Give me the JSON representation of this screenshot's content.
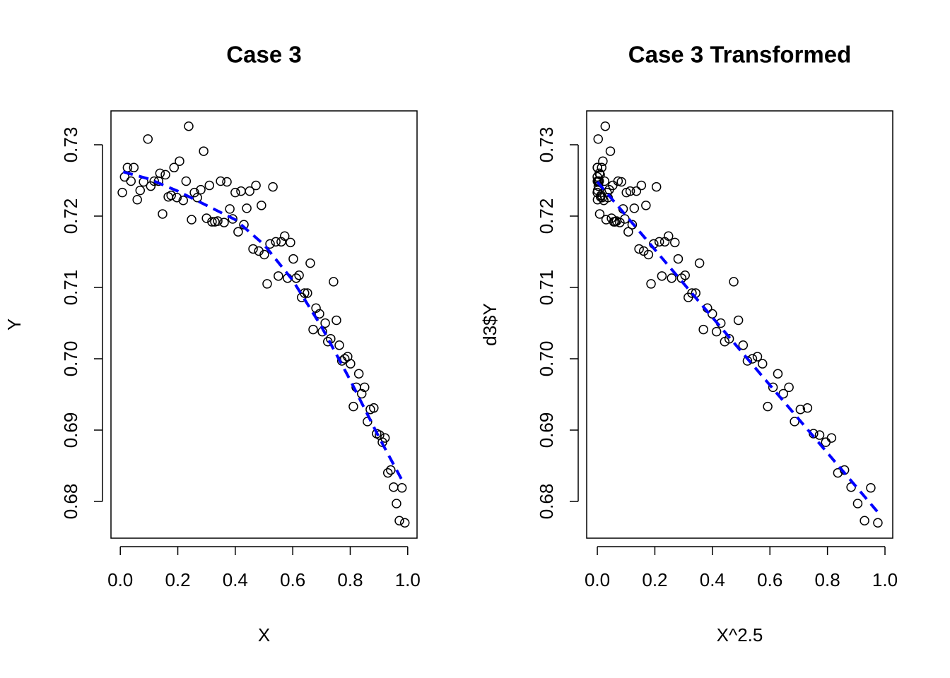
{
  "chart_data": [
    {
      "type": "scatter",
      "title": "Case 3",
      "x_label": "X",
      "y_label": "Y",
      "xlim": [
        -0.0325,
        1.0325
      ],
      "ylim": [
        0.67485,
        0.73475
      ],
      "xticks": [
        {
          "value": 0,
          "label": "0.0"
        },
        0.2,
        0.4,
        0.6,
        0.8,
        {
          "value": 1,
          "label": "1.0"
        }
      ],
      "yticks": [
        0.68,
        0.69,
        {
          "value": 0.7,
          "label": "0.70"
        },
        0.71,
        0.72,
        0.73
      ],
      "color": "#000000",
      "x": [
        0.007,
        0.015,
        0.025,
        0.037,
        0.047,
        0.059,
        0.069,
        0.081,
        0.096,
        0.106,
        0.118,
        0.133,
        0.138,
        0.147,
        0.157,
        0.167,
        0.177,
        0.187,
        0.197,
        0.206,
        0.219,
        0.229,
        0.238,
        0.248,
        0.258,
        0.268,
        0.28,
        0.29,
        0.3,
        0.31,
        0.319,
        0.329,
        0.339,
        0.349,
        0.361,
        0.371,
        0.381,
        0.391,
        0.4,
        0.41,
        0.42,
        0.43,
        0.44,
        0.45,
        0.462,
        0.472,
        0.482,
        0.491,
        0.501,
        0.511,
        0.521,
        0.531,
        0.541,
        0.55,
        0.56,
        0.572,
        0.582,
        0.592,
        0.602,
        0.612,
        0.622,
        0.631,
        0.641,
        0.651,
        0.661,
        0.671,
        0.681,
        0.693,
        0.703,
        0.713,
        0.722,
        0.732,
        0.742,
        0.752,
        0.762,
        0.771,
        0.781,
        0.791,
        0.801,
        0.811,
        0.821,
        0.83,
        0.84,
        0.85,
        0.86,
        0.87,
        0.882,
        0.892,
        0.902,
        0.912,
        0.921,
        0.931,
        0.941,
        0.951,
        0.961,
        0.971,
        0.98,
        0.99
      ],
      "y": [
        0.7233,
        0.7255,
        0.7268,
        0.7249,
        0.7268,
        0.7223,
        0.7236,
        0.7248,
        0.7308,
        0.7242,
        0.7249,
        0.7249,
        0.726,
        0.7203,
        0.7258,
        0.7227,
        0.7229,
        0.7268,
        0.7226,
        0.7277,
        0.7222,
        0.7249,
        0.7326,
        0.7195,
        0.7233,
        0.7226,
        0.7237,
        0.7291,
        0.7197,
        0.7243,
        0.7192,
        0.7192,
        0.7193,
        0.7249,
        0.7191,
        0.7248,
        0.721,
        0.7196,
        0.7233,
        0.7178,
        0.7235,
        0.7188,
        0.7211,
        0.7235,
        0.7154,
        0.7243,
        0.7151,
        0.7215,
        0.7146,
        0.7105,
        0.7161,
        0.7241,
        0.7164,
        0.7116,
        0.7164,
        0.7172,
        0.7113,
        0.7163,
        0.714,
        0.7113,
        0.7117,
        0.7086,
        0.7092,
        0.7092,
        0.7134,
        0.7041,
        0.7071,
        0.7063,
        0.7038,
        0.705,
        0.7024,
        0.7028,
        0.7108,
        0.7054,
        0.7019,
        0.6997,
        0.7,
        0.7003,
        0.6993,
        0.6933,
        0.696,
        0.6979,
        0.6951,
        0.696,
        0.6912,
        0.6929,
        0.6931,
        0.6895,
        0.6893,
        0.6883,
        0.6889,
        0.684,
        0.6844,
        0.682,
        0.6797,
        0.6773,
        0.6819,
        0.677
      ],
      "trend": {
        "color": "#0000ff",
        "x": [
          0.01,
          0.1,
          0.2,
          0.3,
          0.4,
          0.5,
          0.6,
          0.7,
          0.8,
          0.9,
          0.98
        ],
        "y": [
          0.7262,
          0.7252,
          0.7235,
          0.7215,
          0.7195,
          0.716,
          0.711,
          0.7045,
          0.697,
          0.689,
          0.683
        ]
      }
    },
    {
      "type": "scatter",
      "title": "Case 3 Transformed",
      "x_label": "X^2.5",
      "y_label": "d3$Y",
      "xlim": [
        -0.037,
        1.027
      ],
      "ylim": [
        0.67485,
        0.73475
      ],
      "xticks": [
        {
          "value": 0,
          "label": "0.0"
        },
        0.2,
        0.4,
        0.6,
        0.8,
        {
          "value": 1,
          "label": "1.0"
        }
      ],
      "yticks": [
        0.68,
        0.69,
        {
          "value": 0.7,
          "label": "0.70"
        },
        0.71,
        0.72,
        0.73
      ],
      "color": "#000000",
      "x": [
        0.0,
        0.0,
        0.0001,
        0.0003,
        0.0005,
        0.0008,
        0.0013,
        0.0019,
        0.0029,
        0.0037,
        0.0048,
        0.0065,
        0.0071,
        0.0083,
        0.0098,
        0.0114,
        0.0132,
        0.0151,
        0.0172,
        0.0193,
        0.0224,
        0.0251,
        0.0276,
        0.0306,
        0.0338,
        0.0372,
        0.0415,
        0.0453,
        0.0493,
        0.0535,
        0.0575,
        0.0621,
        0.0669,
        0.072,
        0.0783,
        0.0838,
        0.0896,
        0.0956,
        0.1012,
        0.1076,
        0.1143,
        0.1213,
        0.1284,
        0.1358,
        0.1451,
        0.1531,
        0.1613,
        0.169,
        0.1777,
        0.1867,
        0.196,
        0.2055,
        0.2153,
        0.2244,
        0.2347,
        0.2474,
        0.2584,
        0.2696,
        0.2811,
        0.293,
        0.3051,
        0.3163,
        0.329,
        0.342,
        0.3552,
        0.3688,
        0.3827,
        0.3997,
        0.4143,
        0.4292,
        0.4429,
        0.4585,
        0.4742,
        0.4904,
        0.5069,
        0.5219,
        0.5391,
        0.5565,
        0.5742,
        0.5923,
        0.6107,
        0.6276,
        0.6467,
        0.6661,
        0.6858,
        0.706,
        0.7306,
        0.7515,
        0.7727,
        0.7942,
        0.8141,
        0.8362,
        0.8591,
        0.8823,
        0.9052,
        0.929,
        0.9506,
        0.9752
      ],
      "y": [
        0.7233,
        0.7255,
        0.7268,
        0.7249,
        0.7268,
        0.7223,
        0.7236,
        0.7248,
        0.7308,
        0.7242,
        0.7249,
        0.7249,
        0.726,
        0.7203,
        0.7258,
        0.7227,
        0.7229,
        0.7268,
        0.7226,
        0.7277,
        0.7222,
        0.7249,
        0.7326,
        0.7195,
        0.7233,
        0.7226,
        0.7237,
        0.7291,
        0.7197,
        0.7243,
        0.7192,
        0.7192,
        0.7193,
        0.7249,
        0.7191,
        0.7248,
        0.721,
        0.7196,
        0.7233,
        0.7178,
        0.7235,
        0.7188,
        0.7211,
        0.7235,
        0.7154,
        0.7243,
        0.7151,
        0.7215,
        0.7146,
        0.7105,
        0.7161,
        0.7241,
        0.7164,
        0.7116,
        0.7164,
        0.7172,
        0.7113,
        0.7163,
        0.714,
        0.7113,
        0.7117,
        0.7086,
        0.7092,
        0.7092,
        0.7134,
        0.7041,
        0.7071,
        0.7063,
        0.7038,
        0.705,
        0.7024,
        0.7028,
        0.7108,
        0.7054,
        0.7019,
        0.6997,
        0.7,
        0.7003,
        0.6993,
        0.6933,
        0.696,
        0.6979,
        0.6951,
        0.696,
        0.6912,
        0.6929,
        0.6931,
        0.6895,
        0.6893,
        0.6883,
        0.6889,
        0.684,
        0.6844,
        0.682,
        0.6797,
        0.6773,
        0.6819,
        0.677
      ],
      "trend": {
        "color": "#0000ff",
        "x": [
          0.0,
          0.2,
          0.4,
          0.6,
          0.8,
          0.975
        ],
        "y": [
          0.7248,
          0.7153,
          0.7058,
          0.6963,
          0.6868,
          0.6785
        ]
      }
    }
  ]
}
